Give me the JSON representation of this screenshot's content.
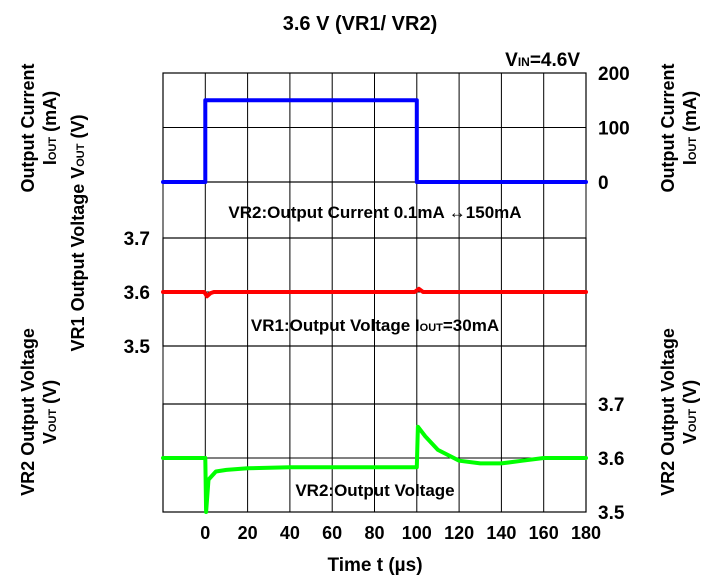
{
  "chart_data": {
    "type": "line",
    "title": "3.6 V (VR1/ VR2)",
    "condition": {
      "prefix": "V",
      "sub": "IN",
      "suffix": "=4.6V"
    },
    "x": {
      "label": "Time t (µs)",
      "min": -20,
      "max": 180,
      "ticks": [
        "0",
        "20",
        "40",
        "60",
        "80",
        "100",
        "120",
        "140",
        "160",
        "180"
      ],
      "tick_values": [
        0,
        20,
        40,
        60,
        80,
        100,
        120,
        140,
        160,
        180
      ],
      "grid_values": [
        -20,
        0,
        20,
        40,
        60,
        80,
        100,
        120,
        140,
        160,
        180
      ]
    },
    "panels": [
      {
        "id": "current",
        "series_color": "#0000ff",
        "ylim": [
          0,
          200
        ],
        "y_ticks": [
          "0",
          "100",
          "200"
        ],
        "y_tick_values": [
          0,
          100,
          200
        ],
        "ylabel_left": {
          "line1": "Output Current",
          "line2_main": "I",
          "line2_sub": "OUT",
          "line2_suffix": " (mA)"
        },
        "ylabel_right": {
          "line1": "Output Current",
          "line2_main": "I",
          "line2_sub": "OUT",
          "line2_suffix": " (mA)"
        },
        "annotation": "VR2:Output Current 0.1mA ↔150mA",
        "points": [
          [
            -20,
            0
          ],
          [
            0,
            0
          ],
          [
            0,
            150
          ],
          [
            100,
            150
          ],
          [
            100,
            0
          ],
          [
            180,
            0
          ]
        ]
      },
      {
        "id": "vr1",
        "series_color": "#ff0000",
        "ylim": [
          3.5,
          3.7
        ],
        "y_ticks": [
          "3.5",
          "3.6",
          "3.7"
        ],
        "y_tick_values": [
          3.5,
          3.6,
          3.7
        ],
        "annotation": {
          "main": "VR1:Output Voltage I",
          "sub": "OUT",
          "suffix": "=30mA"
        },
        "points": [
          [
            -20,
            3.6
          ],
          [
            -0.5,
            3.6
          ],
          [
            0.8,
            3.592
          ],
          [
            2.5,
            3.598
          ],
          [
            4,
            3.6
          ],
          [
            99,
            3.6
          ],
          [
            101,
            3.606
          ],
          [
            103,
            3.6
          ],
          [
            180,
            3.6
          ]
        ]
      },
      {
        "id": "vr2",
        "series_color": "#00ff00",
        "ylim": [
          3.5,
          3.7
        ],
        "y_ticks": [
          "3.5",
          "3.6",
          "3.7"
        ],
        "y_tick_values": [
          3.5,
          3.6,
          3.7
        ],
        "annotation": "VR2:Output Voltage",
        "points": [
          [
            -20,
            3.6
          ],
          [
            0,
            3.6
          ],
          [
            0.4,
            3.5
          ],
          [
            1.5,
            3.56
          ],
          [
            5,
            3.575
          ],
          [
            10,
            3.578
          ],
          [
            20,
            3.581
          ],
          [
            40,
            3.583
          ],
          [
            60,
            3.583
          ],
          [
            80,
            3.583
          ],
          [
            100,
            3.583
          ],
          [
            100.5,
            3.658
          ],
          [
            104,
            3.64
          ],
          [
            110,
            3.615
          ],
          [
            120,
            3.595
          ],
          [
            130,
            3.59
          ],
          [
            140,
            3.59
          ],
          [
            150,
            3.595
          ],
          [
            160,
            3.6
          ],
          [
            180,
            3.6
          ]
        ]
      }
    ],
    "middle_ylabel_left": {
      "main": "VR1 Output Voltage V",
      "sub": "OUT",
      "suffix": " (V)"
    },
    "ylabel_vr2_left": {
      "line1": "VR2 Output Voltage",
      "line2_main": "V",
      "line2_sub": "OUT",
      "line2_suffix": " (V)"
    },
    "ylabel_vr2_right": {
      "line1": "VR2 Output Voltage",
      "line2_main": "V",
      "line2_sub": "OUT",
      "line2_suffix": " (V)"
    }
  }
}
